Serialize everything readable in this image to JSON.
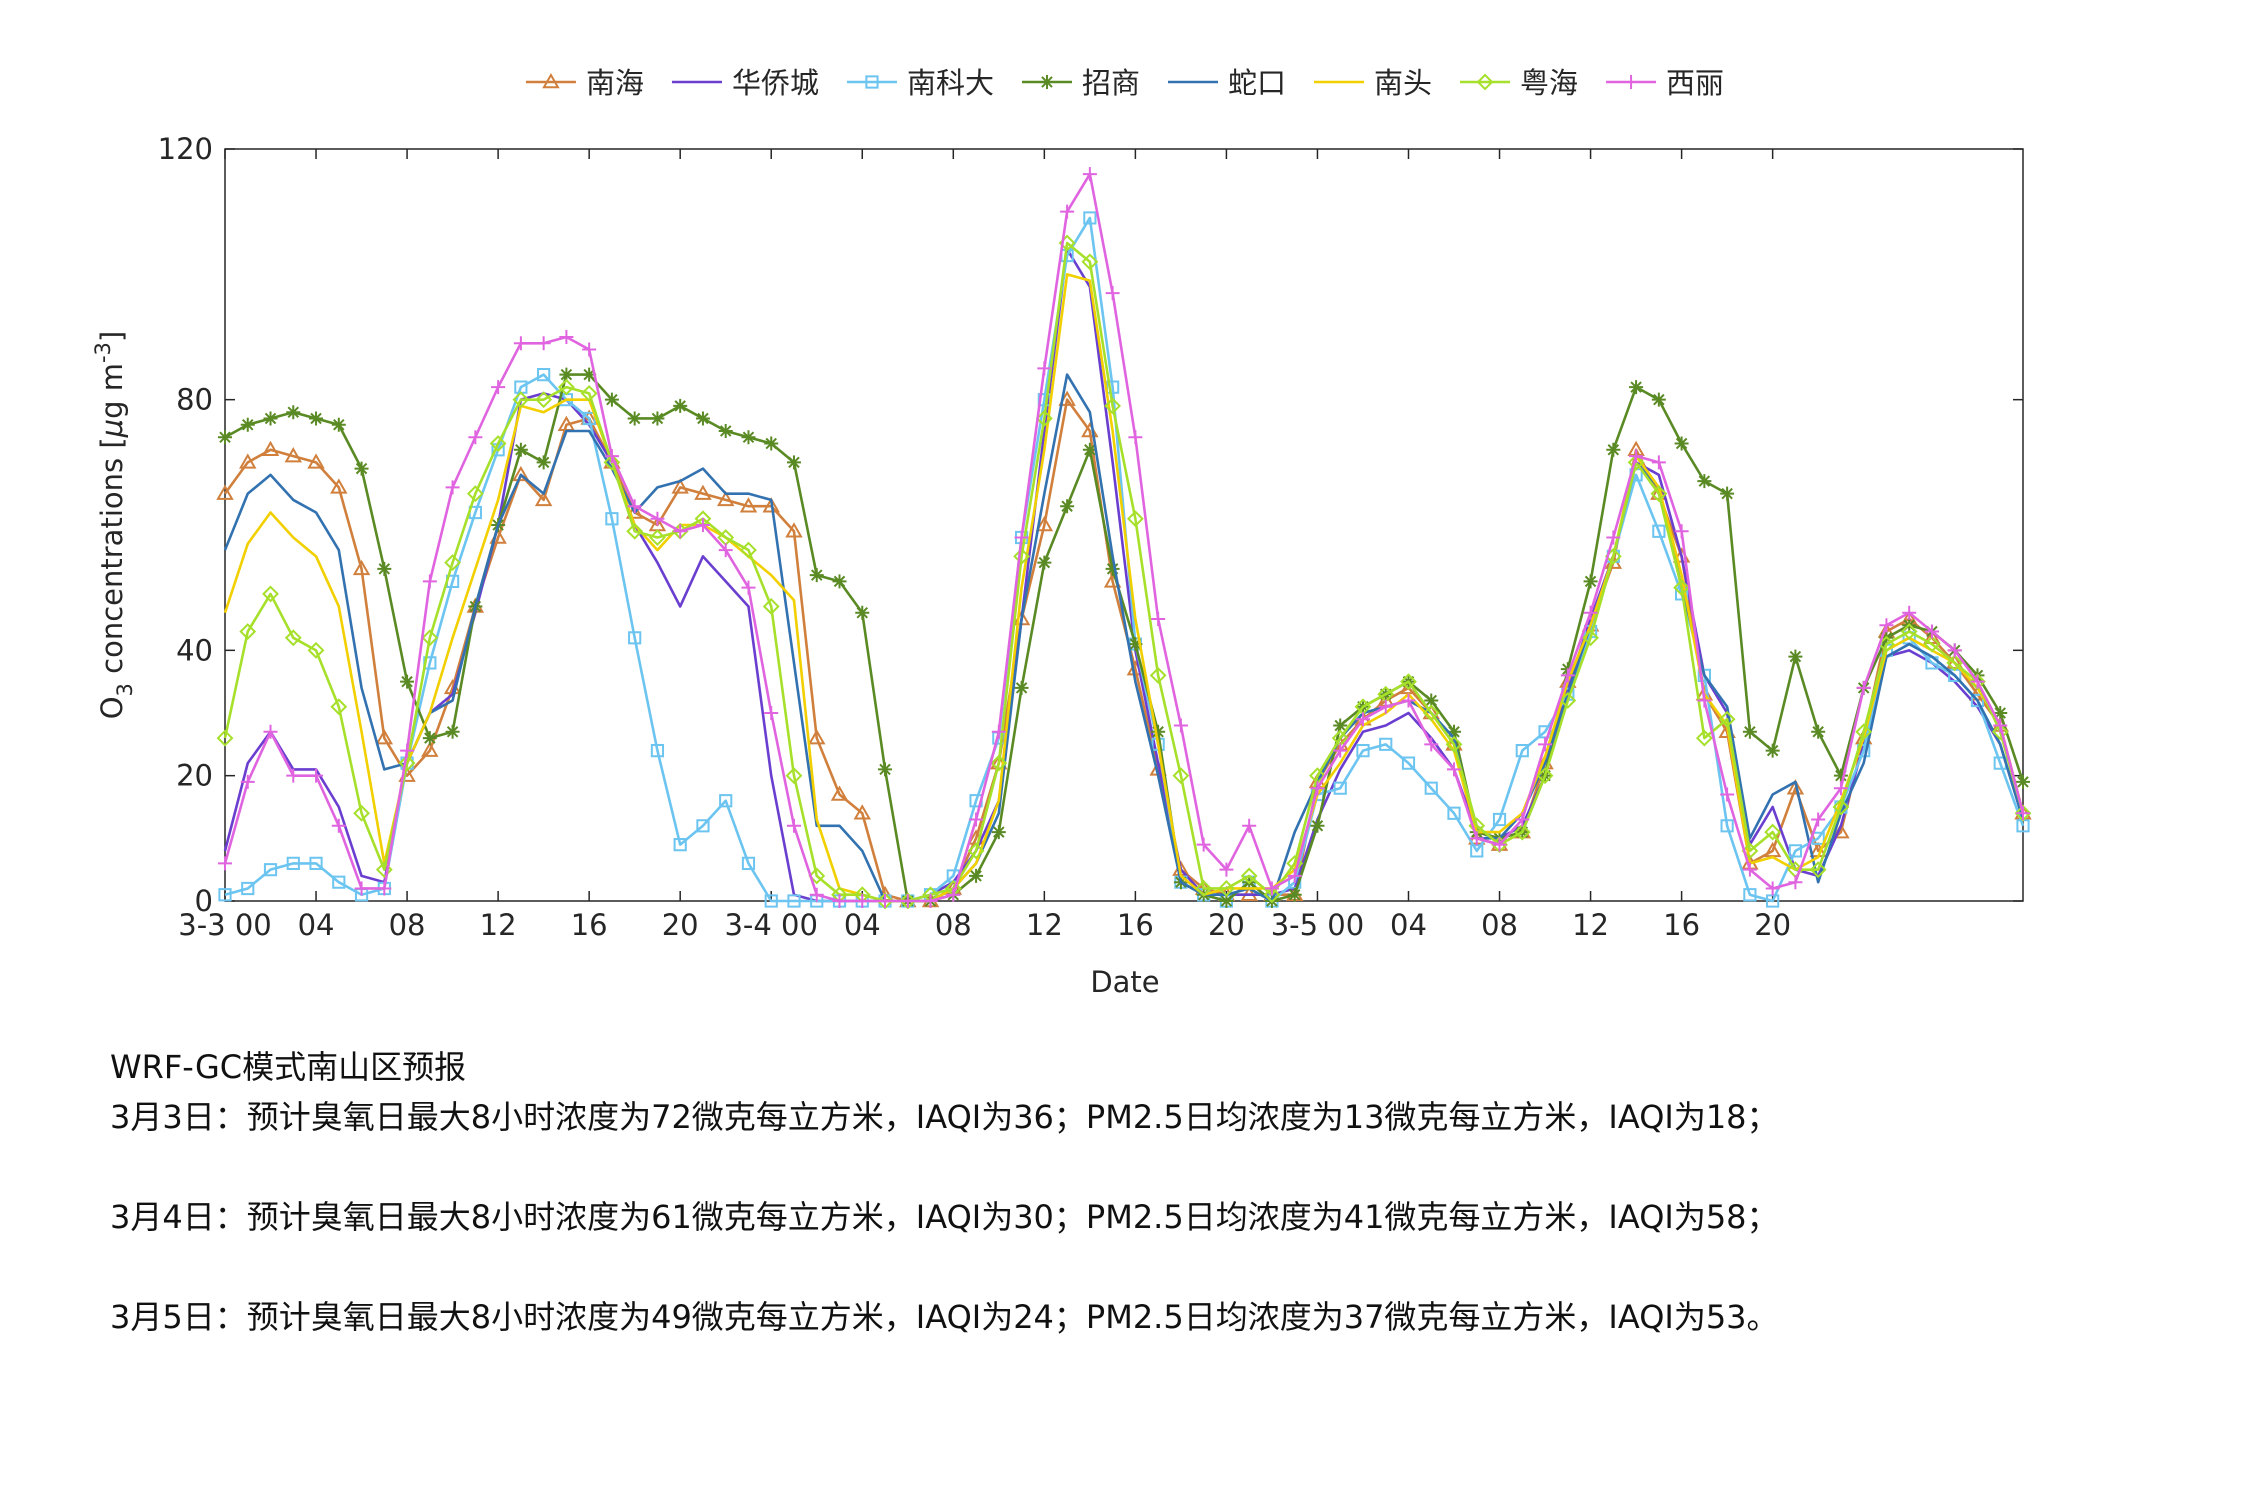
{
  "chart_data": {
    "type": "line",
    "ylabel_parts": [
      "O",
      "3",
      " concentrations [",
      "μ",
      "g m",
      "-3",
      "]"
    ],
    "xlabel": "Date",
    "legend": "top",
    "box": true,
    "grid": false,
    "xlim": [
      0,
      79
    ],
    "ylim": [
      0,
      120
    ],
    "yticks": [
      0,
      20,
      40,
      80,
      120
    ],
    "xticks": [
      {
        "value": 0,
        "label": "3-3 00"
      },
      {
        "value": 4,
        "label": "04"
      },
      {
        "value": 8,
        "label": "08"
      },
      12,
      16,
      20,
      {
        "value": 24,
        "label": "3-4 00"
      },
      {
        "value": 28,
        "label": "04"
      },
      {
        "value": 32,
        "label": "08"
      },
      {
        "value": 36,
        "label": "12"
      },
      {
        "value": 40,
        "label": "16"
      },
      {
        "value": 44,
        "label": "20"
      },
      {
        "value": 48,
        "label": "3-5 00"
      },
      {
        "value": 52,
        "label": "04"
      },
      {
        "value": 56,
        "label": "08"
      },
      {
        "value": 60,
        "label": "12"
      },
      {
        "value": 64,
        "label": "16"
      },
      {
        "value": 68,
        "label": "20"
      }
    ],
    "x": [
      0,
      1,
      2,
      3,
      4,
      5,
      6,
      7,
      8,
      9,
      10,
      11,
      12,
      13,
      14,
      15,
      16,
      17,
      18,
      19,
      20,
      21,
      22,
      23,
      24,
      25,
      26,
      27,
      28,
      29,
      30,
      31,
      32,
      33,
      34,
      35,
      36,
      37,
      38,
      39,
      40,
      41,
      42,
      43,
      44,
      45,
      46,
      47,
      48,
      49,
      50,
      51,
      52,
      53,
      54,
      55,
      56,
      57,
      58,
      59,
      60,
      61,
      62,
      63,
      64,
      65,
      66,
      67,
      68,
      69,
      70,
      71,
      72,
      73,
      74,
      75,
      76,
      77,
      78,
      79
    ],
    "series": [
      {
        "name": "南海",
        "color": "#d0803c",
        "marker": "triangle",
        "values": [
          65,
          70,
          72,
          71,
          70,
          66,
          53,
          26,
          20,
          24,
          34,
          47,
          58,
          68,
          64,
          76,
          77,
          70,
          62,
          60,
          66,
          65,
          64,
          63,
          63,
          59,
          26,
          17,
          14,
          1,
          0,
          0,
          2,
          10,
          22,
          45,
          60,
          80,
          75,
          51,
          37,
          21,
          5,
          2,
          1,
          1,
          1,
          1,
          19,
          25,
          29,
          32,
          34,
          30,
          25,
          10,
          9,
          11,
          22,
          35,
          44,
          54,
          72,
          65,
          55,
          33,
          27,
          6,
          8,
          18,
          8,
          11,
          26,
          43,
          45,
          42,
          38,
          33,
          28,
          14
        ]
      },
      {
        "name": "华侨城",
        "color": "#6a3fd0",
        "marker": "none",
        "values": [
          8,
          22,
          27,
          21,
          21,
          15,
          4,
          3,
          22,
          30,
          33,
          46,
          60,
          80,
          81,
          80,
          76,
          70,
          60,
          54,
          47,
          55,
          51,
          47,
          20,
          1,
          0,
          0,
          0,
          0,
          0,
          1,
          3,
          8,
          16,
          45,
          75,
          104,
          98,
          70,
          40,
          22,
          5,
          1,
          1,
          1,
          1,
          2,
          13,
          21,
          27,
          28,
          30,
          26,
          21,
          11,
          10,
          12,
          20,
          34,
          45,
          55,
          70,
          68,
          55,
          36,
          30,
          9,
          15,
          5,
          4,
          12,
          25,
          39,
          40,
          38,
          35,
          31,
          25,
          13
        ]
      },
      {
        "name": "南科大",
        "color": "#6cc4f0",
        "marker": "square",
        "values": [
          1,
          2,
          5,
          6,
          6,
          3,
          1,
          2,
          22,
          38,
          51,
          62,
          72,
          82,
          84,
          80,
          77,
          61,
          42,
          24,
          9,
          12,
          16,
          6,
          0,
          0,
          0,
          0,
          0,
          0,
          0,
          1,
          4,
          16,
          26,
          58,
          80,
          103,
          109,
          82,
          41,
          25,
          3,
          1,
          0,
          3,
          0,
          3,
          17,
          18,
          24,
          25,
          22,
          18,
          14,
          8,
          13,
          24,
          27,
          33,
          43,
          55,
          68,
          59,
          49,
          36,
          12,
          1,
          0,
          8,
          10,
          15,
          24,
          40,
          42,
          38,
          36,
          32,
          22,
          12
        ]
      },
      {
        "name": "招商",
        "color": "#5a8a24",
        "marker": "asterisk",
        "values": [
          74,
          76,
          77,
          78,
          77,
          76,
          69,
          53,
          35,
          26,
          27,
          47,
          60,
          72,
          70,
          84,
          84,
          80,
          77,
          77,
          79,
          77,
          75,
          74,
          73,
          70,
          52,
          51,
          46,
          21,
          0,
          0,
          1,
          4,
          11,
          34,
          54,
          63,
          72,
          53,
          41,
          27,
          3,
          1,
          0,
          3,
          0,
          1,
          12,
          28,
          31,
          33,
          35,
          32,
          27,
          11,
          10,
          11,
          20,
          37,
          51,
          72,
          82,
          80,
          73,
          67,
          65,
          27,
          24,
          39,
          27,
          20,
          34,
          42,
          44,
          43,
          40,
          36,
          30,
          19
        ]
      },
      {
        "name": "蛇口",
        "color": "#3272b0",
        "marker": "none",
        "values": [
          56,
          65,
          68,
          64,
          62,
          56,
          34,
          21,
          22,
          30,
          32,
          47,
          60,
          68,
          65,
          75,
          75,
          69,
          62,
          66,
          67,
          69,
          65,
          65,
          64,
          38,
          12,
          12,
          8,
          0,
          0,
          0,
          2,
          6,
          14,
          45,
          65,
          84,
          78,
          55,
          35,
          20,
          3,
          1,
          1,
          2,
          0,
          11,
          19,
          26,
          30,
          31,
          32,
          30,
          26,
          10,
          10,
          14,
          22,
          33,
          44,
          55,
          70,
          66,
          50,
          36,
          31,
          10,
          17,
          19,
          3,
          14,
          22,
          39,
          41,
          39,
          36,
          32,
          25,
          13
        ]
      },
      {
        "name": "南头",
        "color": "#f2d000",
        "marker": "none",
        "values": [
          46,
          57,
          62,
          58,
          55,
          47,
          27,
          6,
          22,
          30,
          42,
          53,
          64,
          79,
          78,
          80,
          80,
          70,
          60,
          56,
          60,
          60,
          58,
          55,
          52,
          48,
          13,
          2,
          1,
          0,
          0,
          0,
          2,
          6,
          16,
          50,
          72,
          100,
          99,
          75,
          45,
          25,
          4,
          1,
          2,
          2,
          2,
          5,
          17,
          22,
          28,
          30,
          33,
          29,
          24,
          11,
          11,
          14,
          23,
          35,
          44,
          55,
          71,
          66,
          52,
          33,
          28,
          6,
          7,
          5,
          7,
          16,
          26,
          40,
          42,
          40,
          38,
          34,
          28,
          14
        ]
      },
      {
        "name": "粤海",
        "color": "#a6e02a",
        "marker": "diamond",
        "values": [
          26,
          43,
          49,
          42,
          40,
          31,
          14,
          5,
          22,
          42,
          54,
          65,
          73,
          80,
          80,
          82,
          81,
          70,
          59,
          58,
          59,
          61,
          58,
          56,
          47,
          20,
          4,
          1,
          1,
          0,
          0,
          1,
          2,
          8,
          22,
          55,
          77,
          105,
          102,
          79,
          61,
          36,
          20,
          2,
          2,
          4,
          1,
          6,
          20,
          26,
          31,
          33,
          35,
          30,
          25,
          12,
          9,
          11,
          20,
          32,
          42,
          55,
          70,
          65,
          50,
          26,
          29,
          8,
          11,
          5,
          5,
          15,
          27,
          41,
          43,
          41,
          38,
          35,
          27,
          14
        ]
      },
      {
        "name": "西丽",
        "color": "#e064e0",
        "marker": "plus",
        "values": [
          6,
          19,
          27,
          20,
          20,
          12,
          2,
          2,
          24,
          51,
          66,
          74,
          82,
          89,
          89,
          90,
          88,
          71,
          63,
          61,
          59,
          60,
          56,
          50,
          30,
          12,
          1,
          0,
          0,
          0,
          0,
          0,
          1,
          13,
          27,
          58,
          85,
          110,
          116,
          97,
          74,
          45,
          28,
          9,
          5,
          12,
          2,
          4,
          18,
          24,
          29,
          31,
          32,
          25,
          21,
          10,
          9,
          13,
          25,
          36,
          46,
          58,
          71,
          70,
          59,
          32,
          17,
          5,
          2,
          3,
          13,
          18,
          34,
          44,
          46,
          43,
          40,
          35,
          28,
          14
        ]
      }
    ]
  },
  "forecast": {
    "title": "WRF-GC模式南山区预报",
    "lines": [
      "3月3日：预计臭氧日最大8小时浓度为72微克每立方米，IAQI为36；PM2.5日均浓度为13微克每立方米，IAQI为18；",
      "3月4日：预计臭氧日最大8小时浓度为61微克每立方米，IAQI为30；PM2.5日均浓度为41微克每立方米，IAQI为58；",
      "3月5日：预计臭氧日最大8小时浓度为49微克每立方米，IAQI为24；PM2.5日均浓度为37微克每立方米，IAQI为53。"
    ]
  }
}
